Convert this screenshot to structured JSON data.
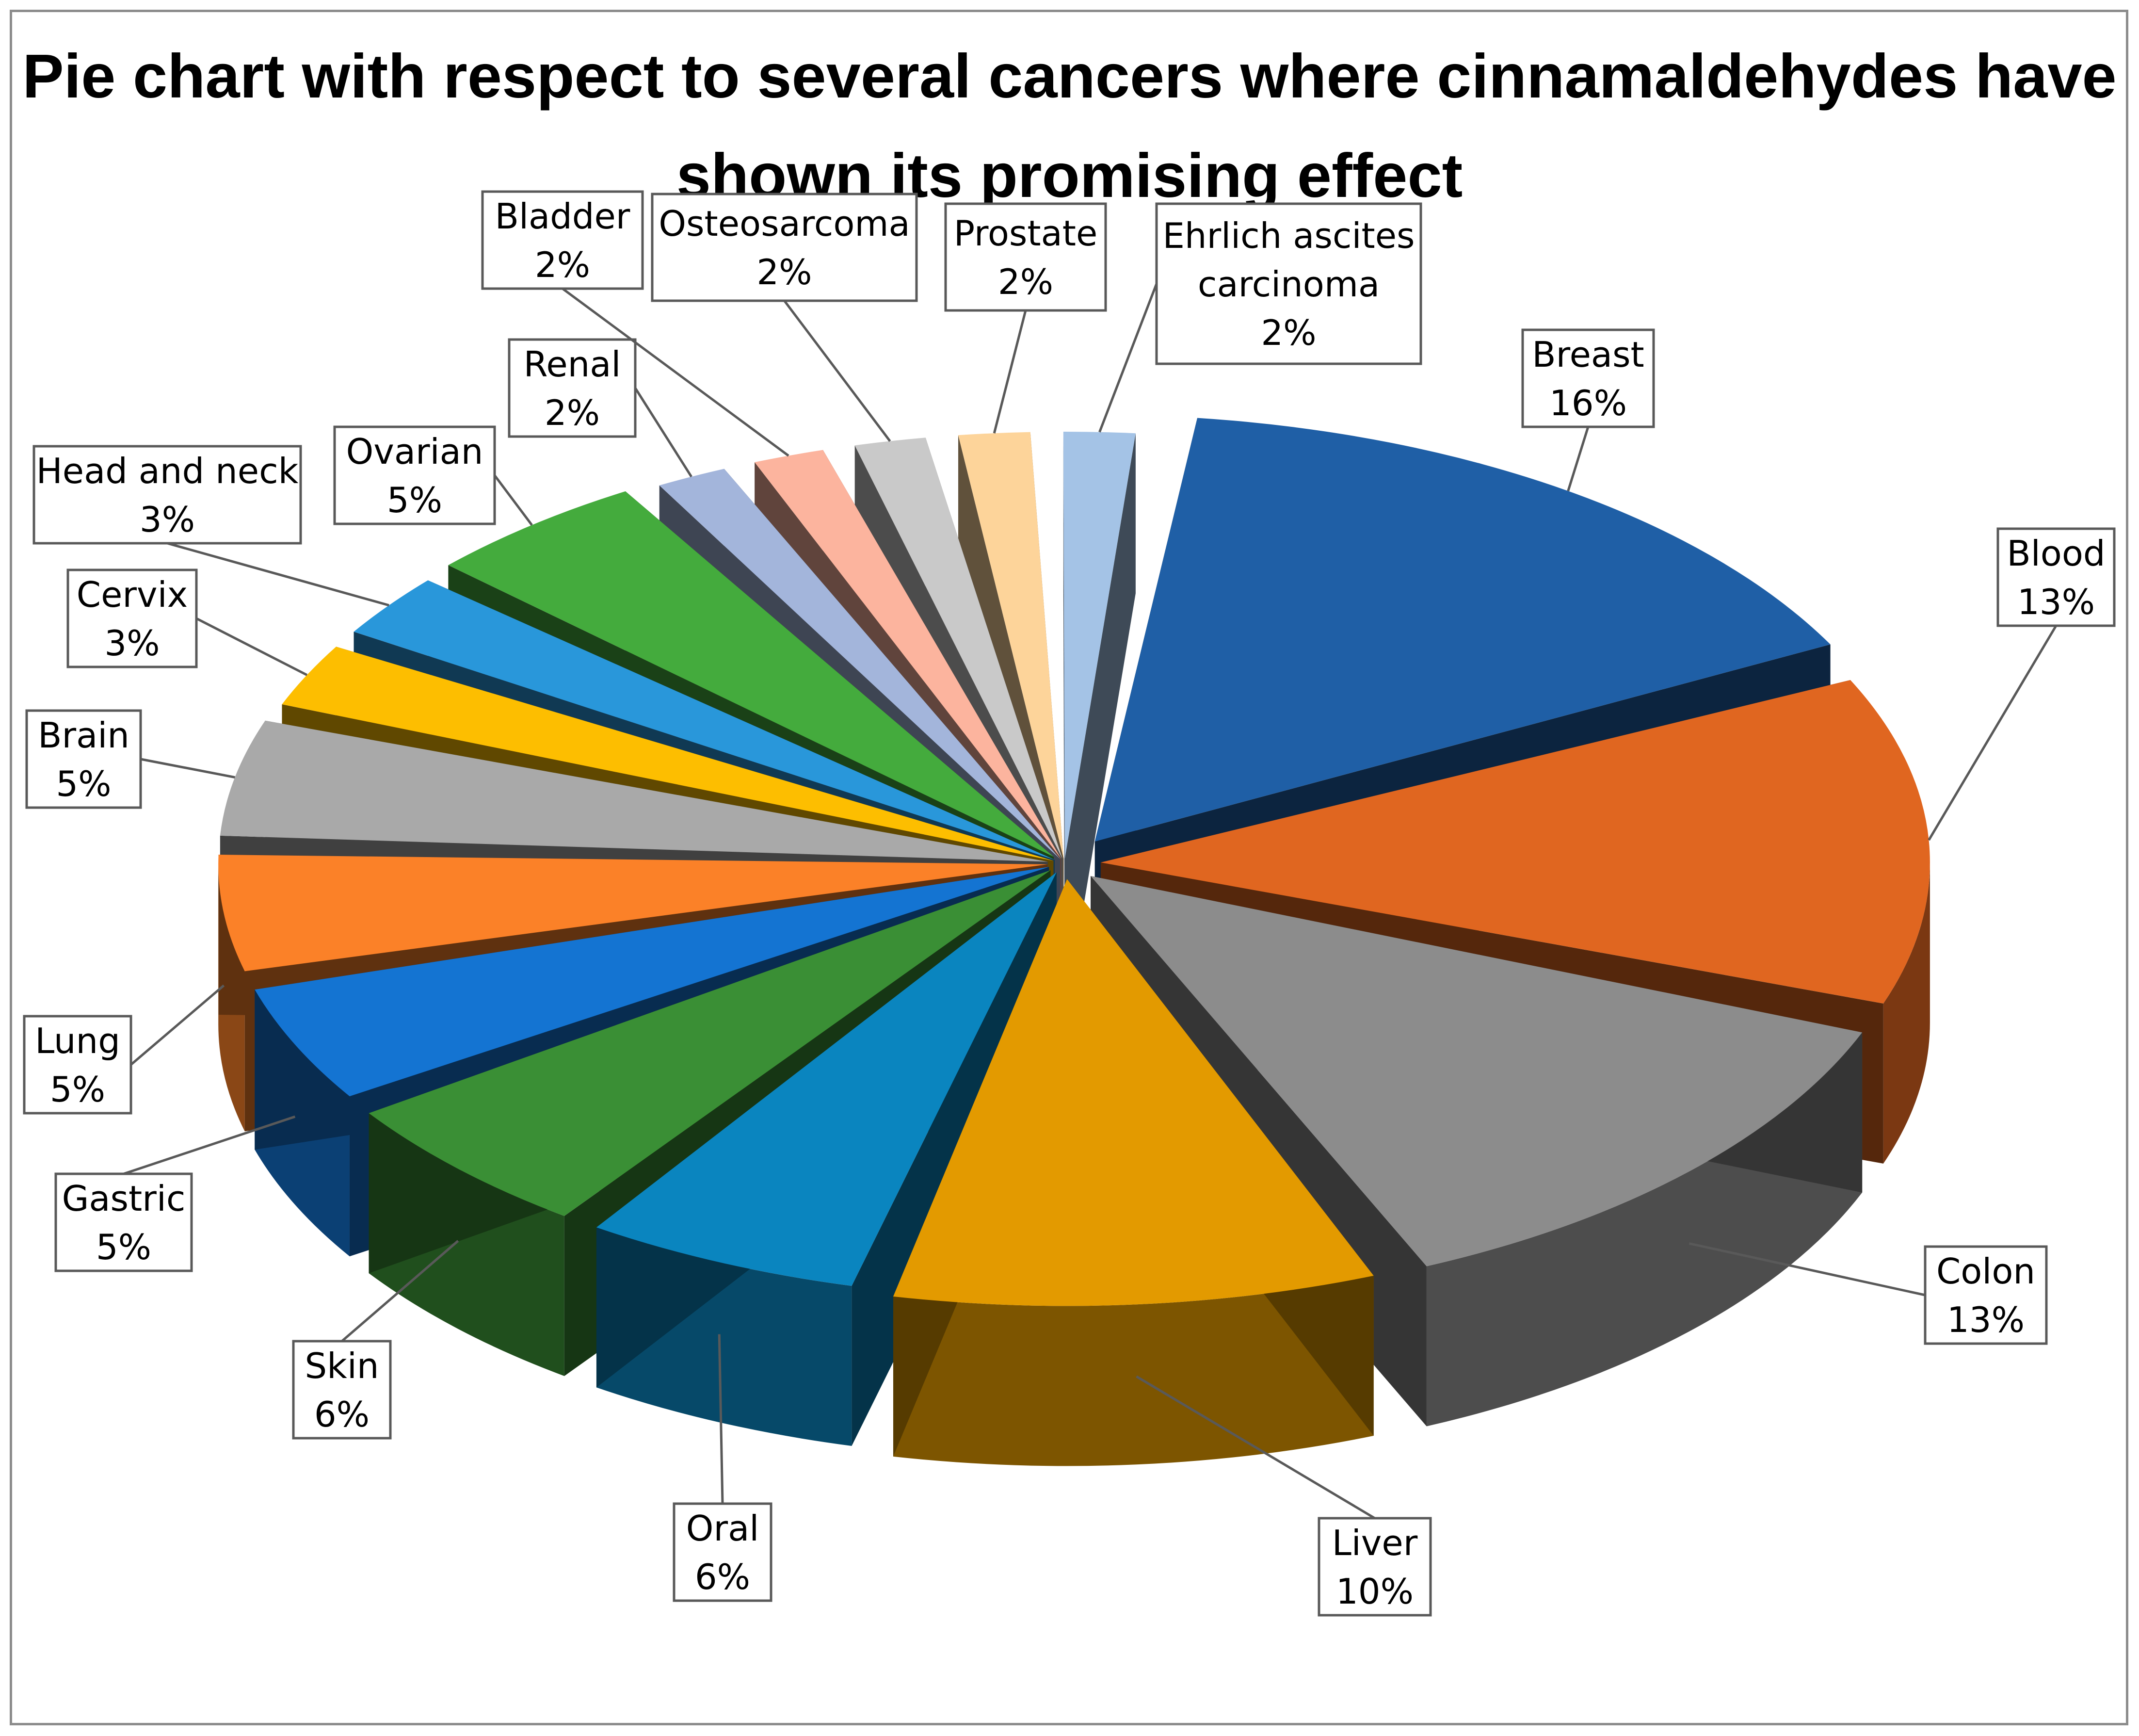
{
  "chart_data": {
    "type": "pie",
    "title": "Pie chart with respect to several cancers where cinnamaldehydes have shown its promising effect",
    "slices": [
      {
        "label": "Breast",
        "value": 16,
        "value_label": "16%",
        "color": "#1F5FA6"
      },
      {
        "label": "Blood",
        "value": 13,
        "value_label": "13%",
        "color": "#E06620"
      },
      {
        "label": "Colon",
        "value": 13,
        "value_label": "13%",
        "color": "#8C8C8C"
      },
      {
        "label": "Liver",
        "value": 10,
        "value_label": "10%",
        "color": "#E39A00"
      },
      {
        "label": "Oral",
        "value": 6,
        "value_label": "6%",
        "color": "#0A85BF"
      },
      {
        "label": "Skin",
        "value": 6,
        "value_label": "6%",
        "color": "#3A8F35"
      },
      {
        "label": "Gastric",
        "value": 5,
        "value_label": "5%",
        "color": "#1474D2"
      },
      {
        "label": "Lung",
        "value": 5,
        "value_label": "5%",
        "color": "#FB8128"
      },
      {
        "label": "Brain",
        "value": 5,
        "value_label": "5%",
        "color": "#A9A9A9"
      },
      {
        "label": "Cervix",
        "value": 3,
        "value_label": "3%",
        "color": "#FDBE00"
      },
      {
        "label": "Head and neck",
        "value": 3,
        "value_label": "3%",
        "color": "#2997DA"
      },
      {
        "label": "Ovarian",
        "value": 5,
        "value_label": "5%",
        "color": "#44AB3D"
      },
      {
        "label": "Renal",
        "value": 2,
        "value_label": "2%",
        "color": "#A3B5DB"
      },
      {
        "label": "Bladder",
        "value": 2,
        "value_label": "2%",
        "color": "#FCB49E"
      },
      {
        "label": "Osteosarcoma",
        "value": 2,
        "value_label": "2%",
        "color": "#C9C9C9"
      },
      {
        "label": "Prostate",
        "value": 2,
        "value_label": "2%",
        "color": "#FDD49A"
      },
      {
        "label": "Ehrlich ascites carcinoma",
        "value": 2,
        "value_label": "2%",
        "color": "#A4C3E6"
      }
    ],
    "legend": "none",
    "style": "3d-exploded"
  }
}
